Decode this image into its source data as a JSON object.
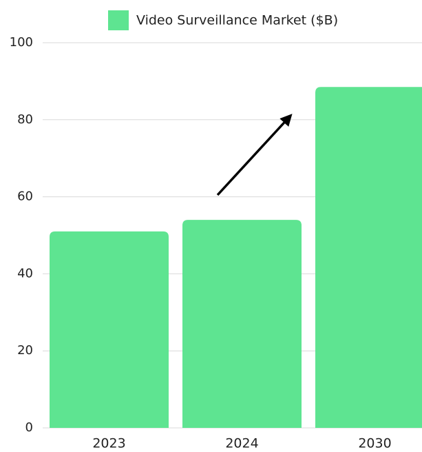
{
  "chart_data": {
    "type": "bar",
    "legend": "Video Surveillance Market ($B)",
    "categories": [
      "2023",
      "2024",
      "2030"
    ],
    "values": [
      51,
      54,
      88.5
    ],
    "color": "#5ee491",
    "ylim": [
      0,
      100
    ],
    "yticks": [
      0,
      20,
      40,
      60,
      80,
      100
    ],
    "grid": true
  }
}
